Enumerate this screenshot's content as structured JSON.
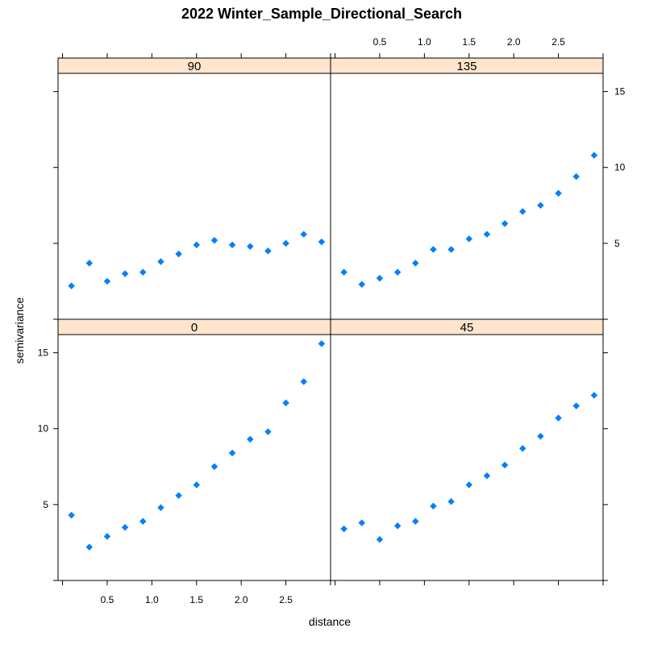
{
  "chart_data": {
    "type": "scatter",
    "title": "2022 Winter_Sample_Directional_Search",
    "xlabel": "distance",
    "ylabel": "semivariance",
    "xlim": [
      -0.05,
      3.0
    ],
    "ylim": [
      0,
      16.2
    ],
    "x_ticks": [
      0.5,
      1.0,
      1.5,
      2.0,
      2.5
    ],
    "y_ticks": [
      5,
      10,
      15
    ],
    "x_tick_labels": [
      "0.5",
      "1.0",
      "1.5",
      "2.0",
      "2.5"
    ],
    "y_tick_labels": [
      "5",
      "10",
      "15"
    ],
    "point_color": "#0080ff",
    "strip_color": "#ffe5cc",
    "x": [
      0.1,
      0.3,
      0.5,
      0.7,
      0.9,
      1.1,
      1.3,
      1.5,
      1.7,
      1.9,
      2.1,
      2.3,
      2.5,
      2.7,
      2.9
    ],
    "panels": [
      {
        "label": "90",
        "values": [
          2.2,
          3.7,
          2.5,
          3.0,
          3.1,
          3.8,
          4.3,
          4.9,
          5.2,
          4.9,
          4.8,
          4.5,
          5.0,
          5.6,
          5.1
        ]
      },
      {
        "label": "135",
        "values": [
          3.1,
          2.3,
          2.7,
          3.1,
          3.7,
          4.6,
          4.6,
          5.3,
          5.6,
          6.3,
          7.1,
          7.5,
          8.3,
          9.4,
          10.8
        ]
      },
      {
        "label": "0",
        "values": [
          4.3,
          2.2,
          2.9,
          3.5,
          3.9,
          4.8,
          5.6,
          6.3,
          7.5,
          8.4,
          9.3,
          9.8,
          11.7,
          13.1,
          15.6
        ]
      },
      {
        "label": "45",
        "values": [
          3.4,
          3.8,
          2.7,
          3.6,
          3.9,
          4.9,
          5.2,
          6.3,
          6.9,
          7.6,
          8.7,
          9.5,
          10.7,
          11.5,
          12.2
        ]
      }
    ]
  }
}
